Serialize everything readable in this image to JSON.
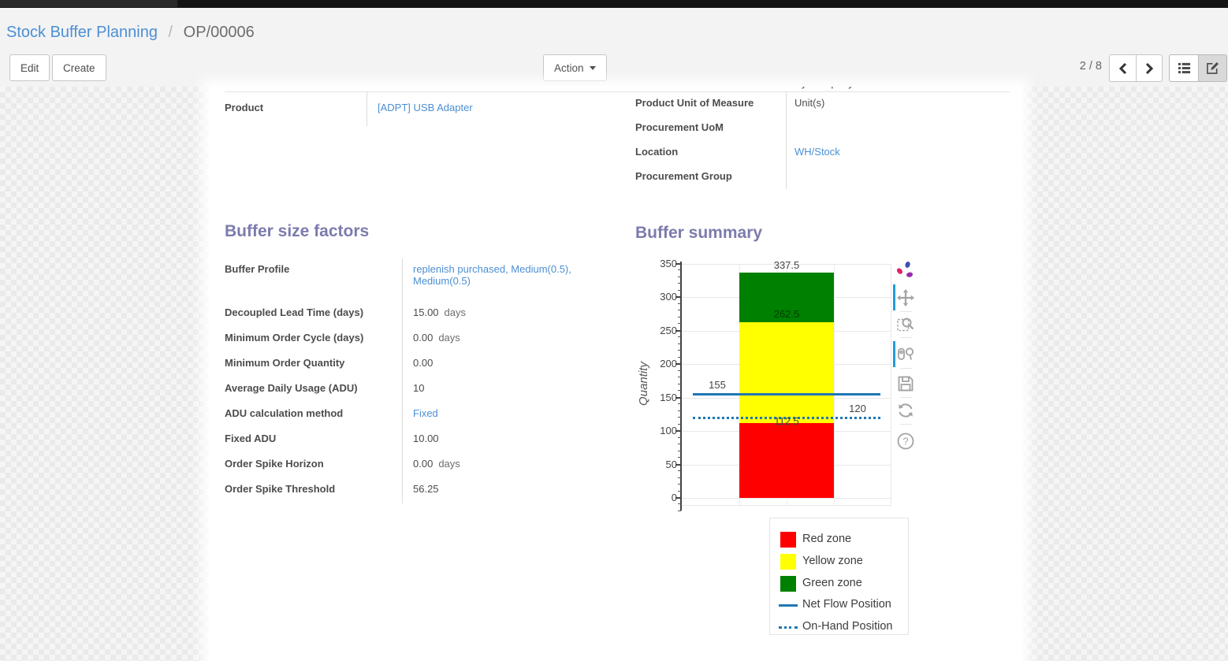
{
  "colors": {
    "accent_heading": "#7c7bad",
    "link": "#4c8fd4",
    "net_flow_blue": "#1f77b4",
    "red_zone": "#ff0000",
    "yellow_zone": "#ffff00",
    "green_zone": "#008000"
  },
  "breadcrumb": {
    "parent": "Stock Buffer Planning",
    "separator": "/",
    "current": "OP/00006"
  },
  "toolbar": {
    "edit_label": "Edit",
    "create_label": "Create",
    "action_label": "Action",
    "pager_value": "2 / 8",
    "view_switcher": [
      {
        "name": "list-view",
        "active": false
      },
      {
        "name": "form-view",
        "active": true
      }
    ]
  },
  "form": {
    "clipped_value": "My Company",
    "left_group": {
      "rows": [
        {
          "label": "Product",
          "value": "[ADPT] USB Adapter",
          "link": true
        }
      ]
    },
    "right_group": {
      "rows": [
        {
          "label": "Product Unit of Measure",
          "value": "Unit(s)",
          "link": false
        },
        {
          "label": "Procurement UoM",
          "value": "",
          "link": false
        },
        {
          "label": "Location",
          "value": "WH/Stock",
          "link": true
        },
        {
          "label": "Procurement Group",
          "value": "",
          "link": false
        }
      ]
    },
    "buffer_factors": {
      "title": "Buffer size factors",
      "rows": [
        {
          "label": "Buffer Profile",
          "value": "replenish purchased, Medium(0.5), Medium(0.5)",
          "link": true
        },
        {
          "label": "Decoupled Lead Time (days)",
          "value": "15.00",
          "unit": "days"
        },
        {
          "label": "Minimum Order Cycle (days)",
          "value": "0.00",
          "unit": "days"
        },
        {
          "label": "Minimum Order Quantity",
          "value": "0.00"
        },
        {
          "label": "Average Daily Usage (ADU)",
          "value": "10"
        },
        {
          "label": "ADU calculation method",
          "value": "Fixed",
          "link": true
        },
        {
          "label": "Fixed ADU",
          "value": "10.00"
        },
        {
          "label": "Order Spike Horizon",
          "value": "0.00",
          "unit": "days"
        },
        {
          "label": "Order Spike Threshold",
          "value": "56.25"
        }
      ]
    },
    "buffer_summary_title": "Buffer summary"
  },
  "chart_data": {
    "type": "bar",
    "title": "Buffer summary",
    "xlabel": "",
    "ylabel": "Quantity",
    "ylim": [
      0,
      350
    ],
    "ytick_step": 50,
    "grid": true,
    "categories": [
      ""
    ],
    "zones": [
      {
        "name": "Red zone",
        "from": 0,
        "to": 112.5,
        "color": "#ff0000"
      },
      {
        "name": "Yellow zone",
        "from": 112.5,
        "to": 262.5,
        "color": "#ffff00"
      },
      {
        "name": "Green zone",
        "from": 262.5,
        "to": 337.5,
        "color": "#008000"
      }
    ],
    "lines": [
      {
        "name": "Net Flow Position",
        "value": 155,
        "style": "solid",
        "color": "#1f77b4",
        "label": "155",
        "label_side": "left"
      },
      {
        "name": "On-Hand Position",
        "value": 120,
        "style": "dotted",
        "color": "#1f77b4",
        "label": "120",
        "label_side": "right"
      }
    ],
    "annotations": [
      {
        "text": "337.5",
        "value": 337.5,
        "placement": "above-bar"
      },
      {
        "text": "262.5",
        "value": 262.5,
        "placement": "inside-green"
      },
      {
        "text": "112.5",
        "value": 112.5,
        "placement": "on-line"
      }
    ],
    "legend_position": "below-right",
    "legend": [
      {
        "label": "Red zone",
        "swatch": "square",
        "color": "#ff0000"
      },
      {
        "label": "Yellow zone",
        "swatch": "square",
        "color": "#ffff00"
      },
      {
        "label": "Green zone",
        "swatch": "square",
        "color": "#008000"
      },
      {
        "label": "Net Flow Position",
        "swatch": "line",
        "color": "#1f77b4"
      },
      {
        "label": "On-Hand Position",
        "swatch": "dotted",
        "color": "#1f77b4"
      }
    ],
    "modebar": [
      {
        "name": "plotly-logo-icon",
        "active": false
      },
      {
        "name": "pan-icon",
        "active": true
      },
      {
        "name": "box-zoom-icon",
        "active": false
      },
      {
        "name": "compare-hover-icon",
        "active": true
      },
      {
        "name": "save-chart-icon",
        "active": false
      },
      {
        "name": "reset-axes-icon",
        "active": false
      },
      {
        "name": "help-icon",
        "active": false
      }
    ]
  }
}
